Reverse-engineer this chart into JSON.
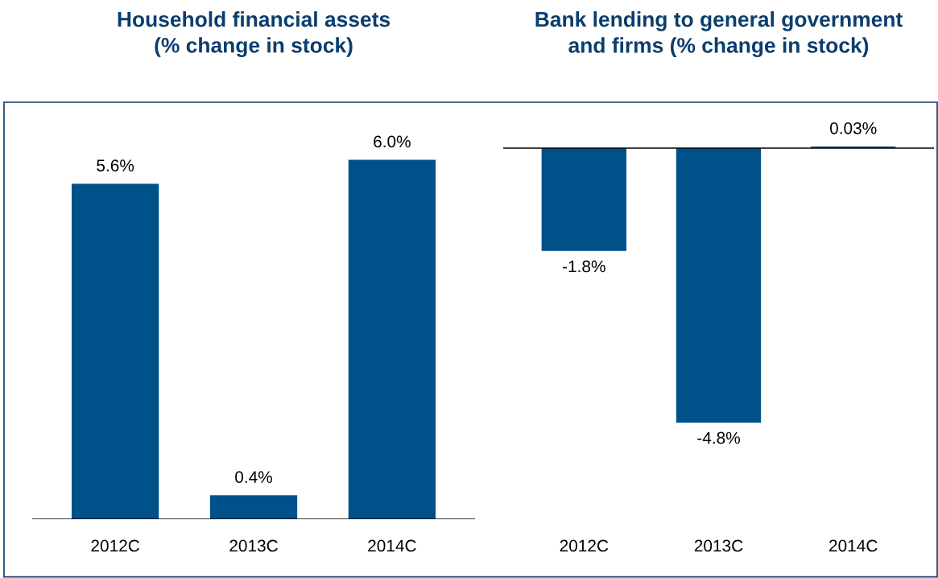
{
  "chart_data": [
    {
      "type": "bar",
      "title": "Household financial assets\n(% change in stock)",
      "categories": [
        "2012C",
        "2013C",
        "2014C"
      ],
      "values": [
        5.6,
        0.4,
        6.0
      ],
      "color": "#00508a",
      "value_labels": [
        "5.6%",
        "0.4%",
        "6.0%"
      ]
    },
    {
      "type": "bar",
      "title": "Bank lending to general government\nand firms (% change in stock)",
      "categories": [
        "2012C",
        "2013C",
        "2014C"
      ],
      "values": [
        -1.8,
        -4.8,
        0.03
      ],
      "color": "#00508a",
      "value_labels": [
        "-1.8%",
        "-4.8%",
        "0.03%"
      ]
    }
  ]
}
